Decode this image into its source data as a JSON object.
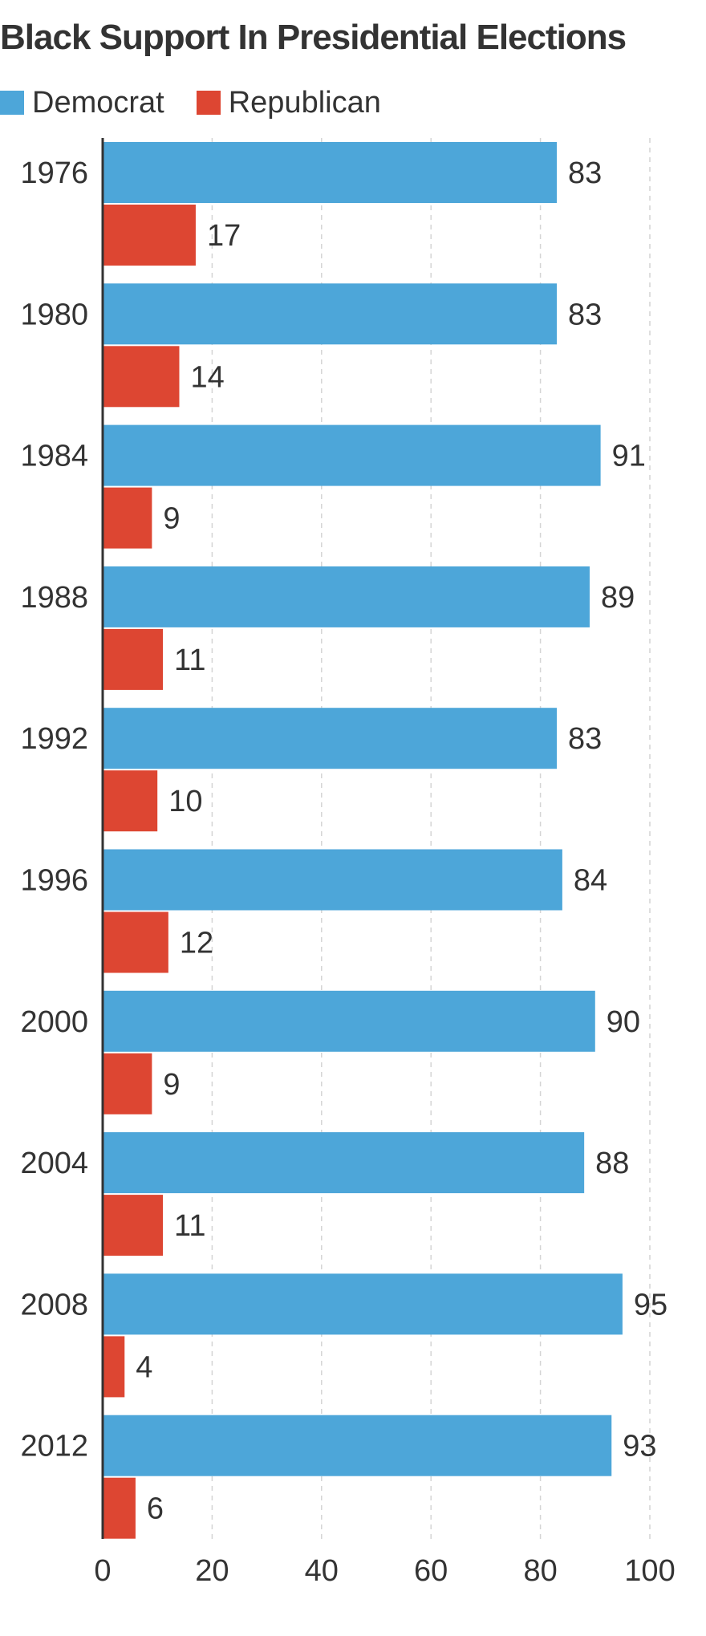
{
  "chart_data": {
    "type": "bar",
    "orientation": "horizontal",
    "title": "Black Support In Presidential Elections",
    "xlabel": "",
    "ylabel": "",
    "categories": [
      "1976",
      "1980",
      "1984",
      "1988",
      "1992",
      "1996",
      "2000",
      "2004",
      "2008",
      "2012"
    ],
    "series": [
      {
        "name": "Democrat",
        "color": "#4da6d9",
        "values": [
          83,
          83,
          91,
          89,
          83,
          84,
          90,
          88,
          95,
          93
        ]
      },
      {
        "name": "Republican",
        "color": "#dd4632",
        "values": [
          17,
          14,
          9,
          11,
          10,
          12,
          9,
          11,
          4,
          6
        ]
      }
    ],
    "xlim": [
      0,
      100
    ],
    "xticks": [
      0,
      20,
      40,
      60,
      80,
      100
    ],
    "grid": true,
    "legend_position": "top-left"
  }
}
